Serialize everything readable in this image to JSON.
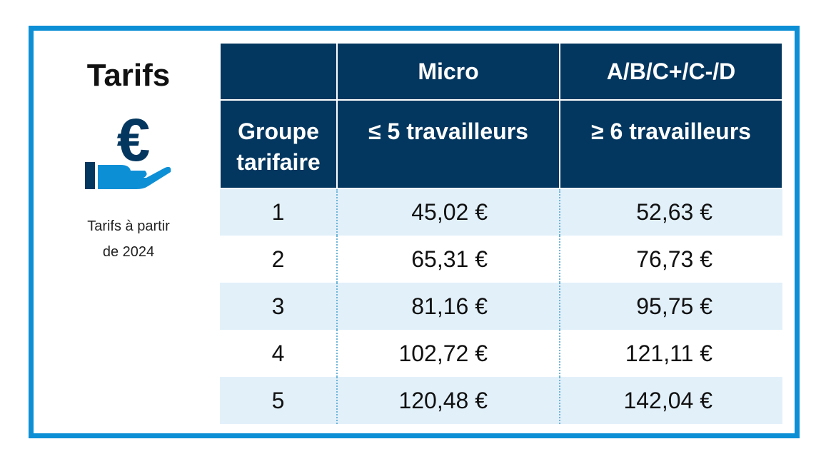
{
  "sidebar": {
    "title": "Tarifs",
    "icon": "euro-hand-icon",
    "note_line1": "Tarifs à partir",
    "note_line2": "de 2024"
  },
  "table": {
    "header_top": [
      "",
      "Micro",
      "A/B/C+/C-/D"
    ],
    "header_sub": {
      "col1_line1": "Groupe",
      "col1_line2": "tarifaire",
      "col2": "≤ 5 travailleurs",
      "col3": "≥ 6 travailleurs"
    },
    "rows": [
      {
        "group": "1",
        "micro": "45,02 €",
        "large": "52,63 €"
      },
      {
        "group": "2",
        "micro": "65,31 €",
        "large": "76,73 €"
      },
      {
        "group": "3",
        "micro": "81,16 €",
        "large": "95,75 €"
      },
      {
        "group": "4",
        "micro": "102,72 €",
        "large": "121,11 €"
      },
      {
        "group": "5",
        "micro": "120,48 €",
        "large": "142,04 €"
      }
    ]
  },
  "colors": {
    "frame": "#0d8fd6",
    "header_bg": "#04375f",
    "stripe": "#e2f0fa",
    "icon_dark": "#04375f",
    "icon_light": "#0d8fd6"
  }
}
